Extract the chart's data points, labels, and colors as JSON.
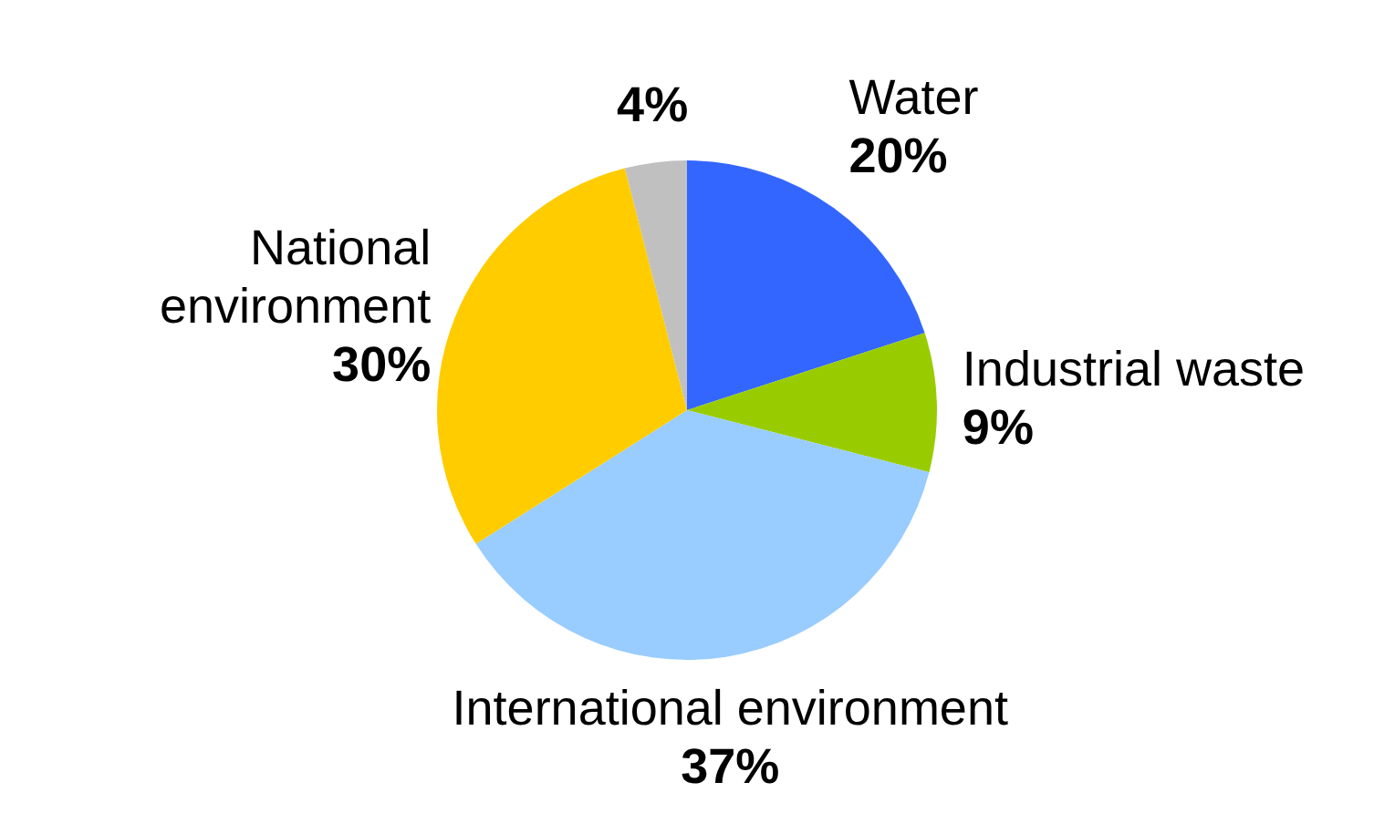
{
  "chart_data": {
    "type": "pie",
    "categories": [
      "Water",
      "Industrial waste",
      "International environment",
      "National environment",
      null
    ],
    "values": [
      20,
      9,
      37,
      30,
      4
    ],
    "value_labels": [
      "20%",
      "9%",
      "37%",
      "30%",
      "4%"
    ],
    "colors": [
      "#3366ff",
      "#99cc00",
      "#99ccff",
      "#ffcc00",
      "#c0c0c0"
    ],
    "legend": false
  }
}
